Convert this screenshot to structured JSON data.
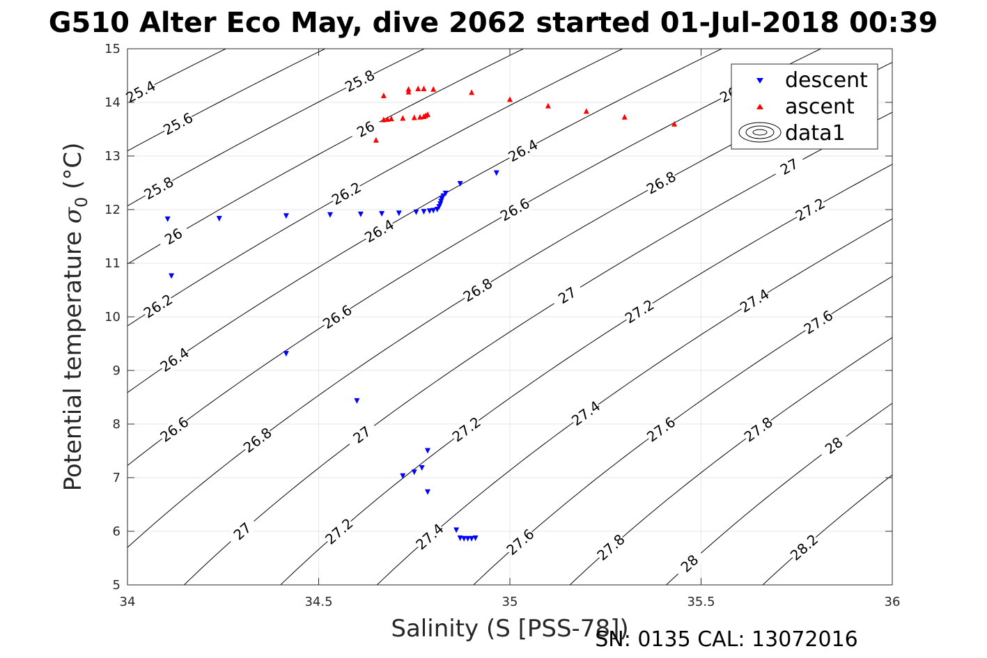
{
  "chart_data": {
    "type": "scatter",
    "title": "G510 Alter Eco May, dive 2062 started 01-Jul-2018 00:39",
    "xlabel": "Salinity (S [PSS-78])",
    "ylabel_main": "Potential temperature ",
    "ylabel_sym": "σ",
    "ylabel_sub": "0",
    "ylabel_unit": " (°C)",
    "xlim": [
      34,
      36
    ],
    "ylim": [
      5,
      15
    ],
    "xticks": [
      "34",
      "34.5",
      "35",
      "35.5",
      "36"
    ],
    "yticks": [
      "5",
      "6",
      "7",
      "8",
      "9",
      "10",
      "11",
      "12",
      "13",
      "14",
      "15"
    ],
    "grid": true,
    "legend_position": "top-right",
    "legend": [
      "descent",
      "ascent",
      "data1"
    ],
    "footer": "SN: 0135  CAL: 13072016",
    "colors": {
      "descent": "#0000ff",
      "ascent": "#ff0000",
      "contour": "#000000",
      "grid": "#e6e6e6"
    },
    "contour_labels": [
      "25.4",
      "25.6",
      "25.8",
      "26",
      "26.2",
      "26.4",
      "26.6",
      "26.8",
      "27",
      "27.2",
      "27.4",
      "27.6",
      "27.8",
      "28",
      "28.2"
    ],
    "contour_levels": [
      25.4,
      25.6,
      25.8,
      26.0,
      26.2,
      26.4,
      26.6,
      26.8,
      27.0,
      27.2,
      27.4,
      27.6,
      27.8,
      28.0,
      28.2
    ],
    "series": [
      {
        "name": "descent",
        "marker": "triangle-down",
        "points": [
          [
            34.105,
            11.82
          ],
          [
            34.115,
            10.76
          ],
          [
            34.24,
            11.83
          ],
          [
            34.415,
            11.88
          ],
          [
            34.53,
            11.9
          ],
          [
            34.61,
            11.91
          ],
          [
            34.665,
            11.92
          ],
          [
            34.71,
            11.93
          ],
          [
            34.755,
            11.95
          ],
          [
            34.775,
            11.96
          ],
          [
            34.79,
            11.97
          ],
          [
            34.8,
            11.98
          ],
          [
            34.81,
            12.0
          ],
          [
            34.815,
            12.05
          ],
          [
            34.818,
            12.1
          ],
          [
            34.82,
            12.15
          ],
          [
            34.822,
            12.2
          ],
          [
            34.826,
            12.25
          ],
          [
            34.832,
            12.3
          ],
          [
            34.87,
            12.48
          ],
          [
            34.965,
            12.68
          ],
          [
            34.415,
            9.31
          ],
          [
            34.6,
            8.43
          ],
          [
            34.785,
            7.5
          ],
          [
            34.77,
            7.18
          ],
          [
            34.75,
            7.1
          ],
          [
            34.72,
            7.03
          ],
          [
            34.785,
            6.73
          ],
          [
            34.86,
            6.02
          ],
          [
            34.87,
            5.87
          ],
          [
            34.88,
            5.86
          ],
          [
            34.89,
            5.86
          ],
          [
            34.9,
            5.86
          ],
          [
            34.91,
            5.87
          ]
        ]
      },
      {
        "name": "ascent",
        "marker": "triangle-up",
        "points": [
          [
            34.67,
            14.13
          ],
          [
            34.735,
            14.2
          ],
          [
            34.735,
            14.25
          ],
          [
            34.76,
            14.26
          ],
          [
            34.775,
            14.26
          ],
          [
            34.67,
            13.68
          ],
          [
            34.68,
            13.69
          ],
          [
            34.69,
            13.7
          ],
          [
            34.72,
            13.71
          ],
          [
            34.75,
            13.72
          ],
          [
            34.765,
            13.73
          ],
          [
            34.775,
            13.74
          ],
          [
            34.78,
            13.76
          ],
          [
            34.785,
            13.78
          ],
          [
            34.65,
            13.3
          ],
          [
            34.8,
            14.25
          ],
          [
            34.9,
            14.19
          ],
          [
            35.0,
            14.06
          ],
          [
            35.1,
            13.94
          ],
          [
            35.2,
            13.84
          ],
          [
            35.3,
            13.73
          ],
          [
            35.43,
            13.6
          ]
        ]
      }
    ]
  }
}
